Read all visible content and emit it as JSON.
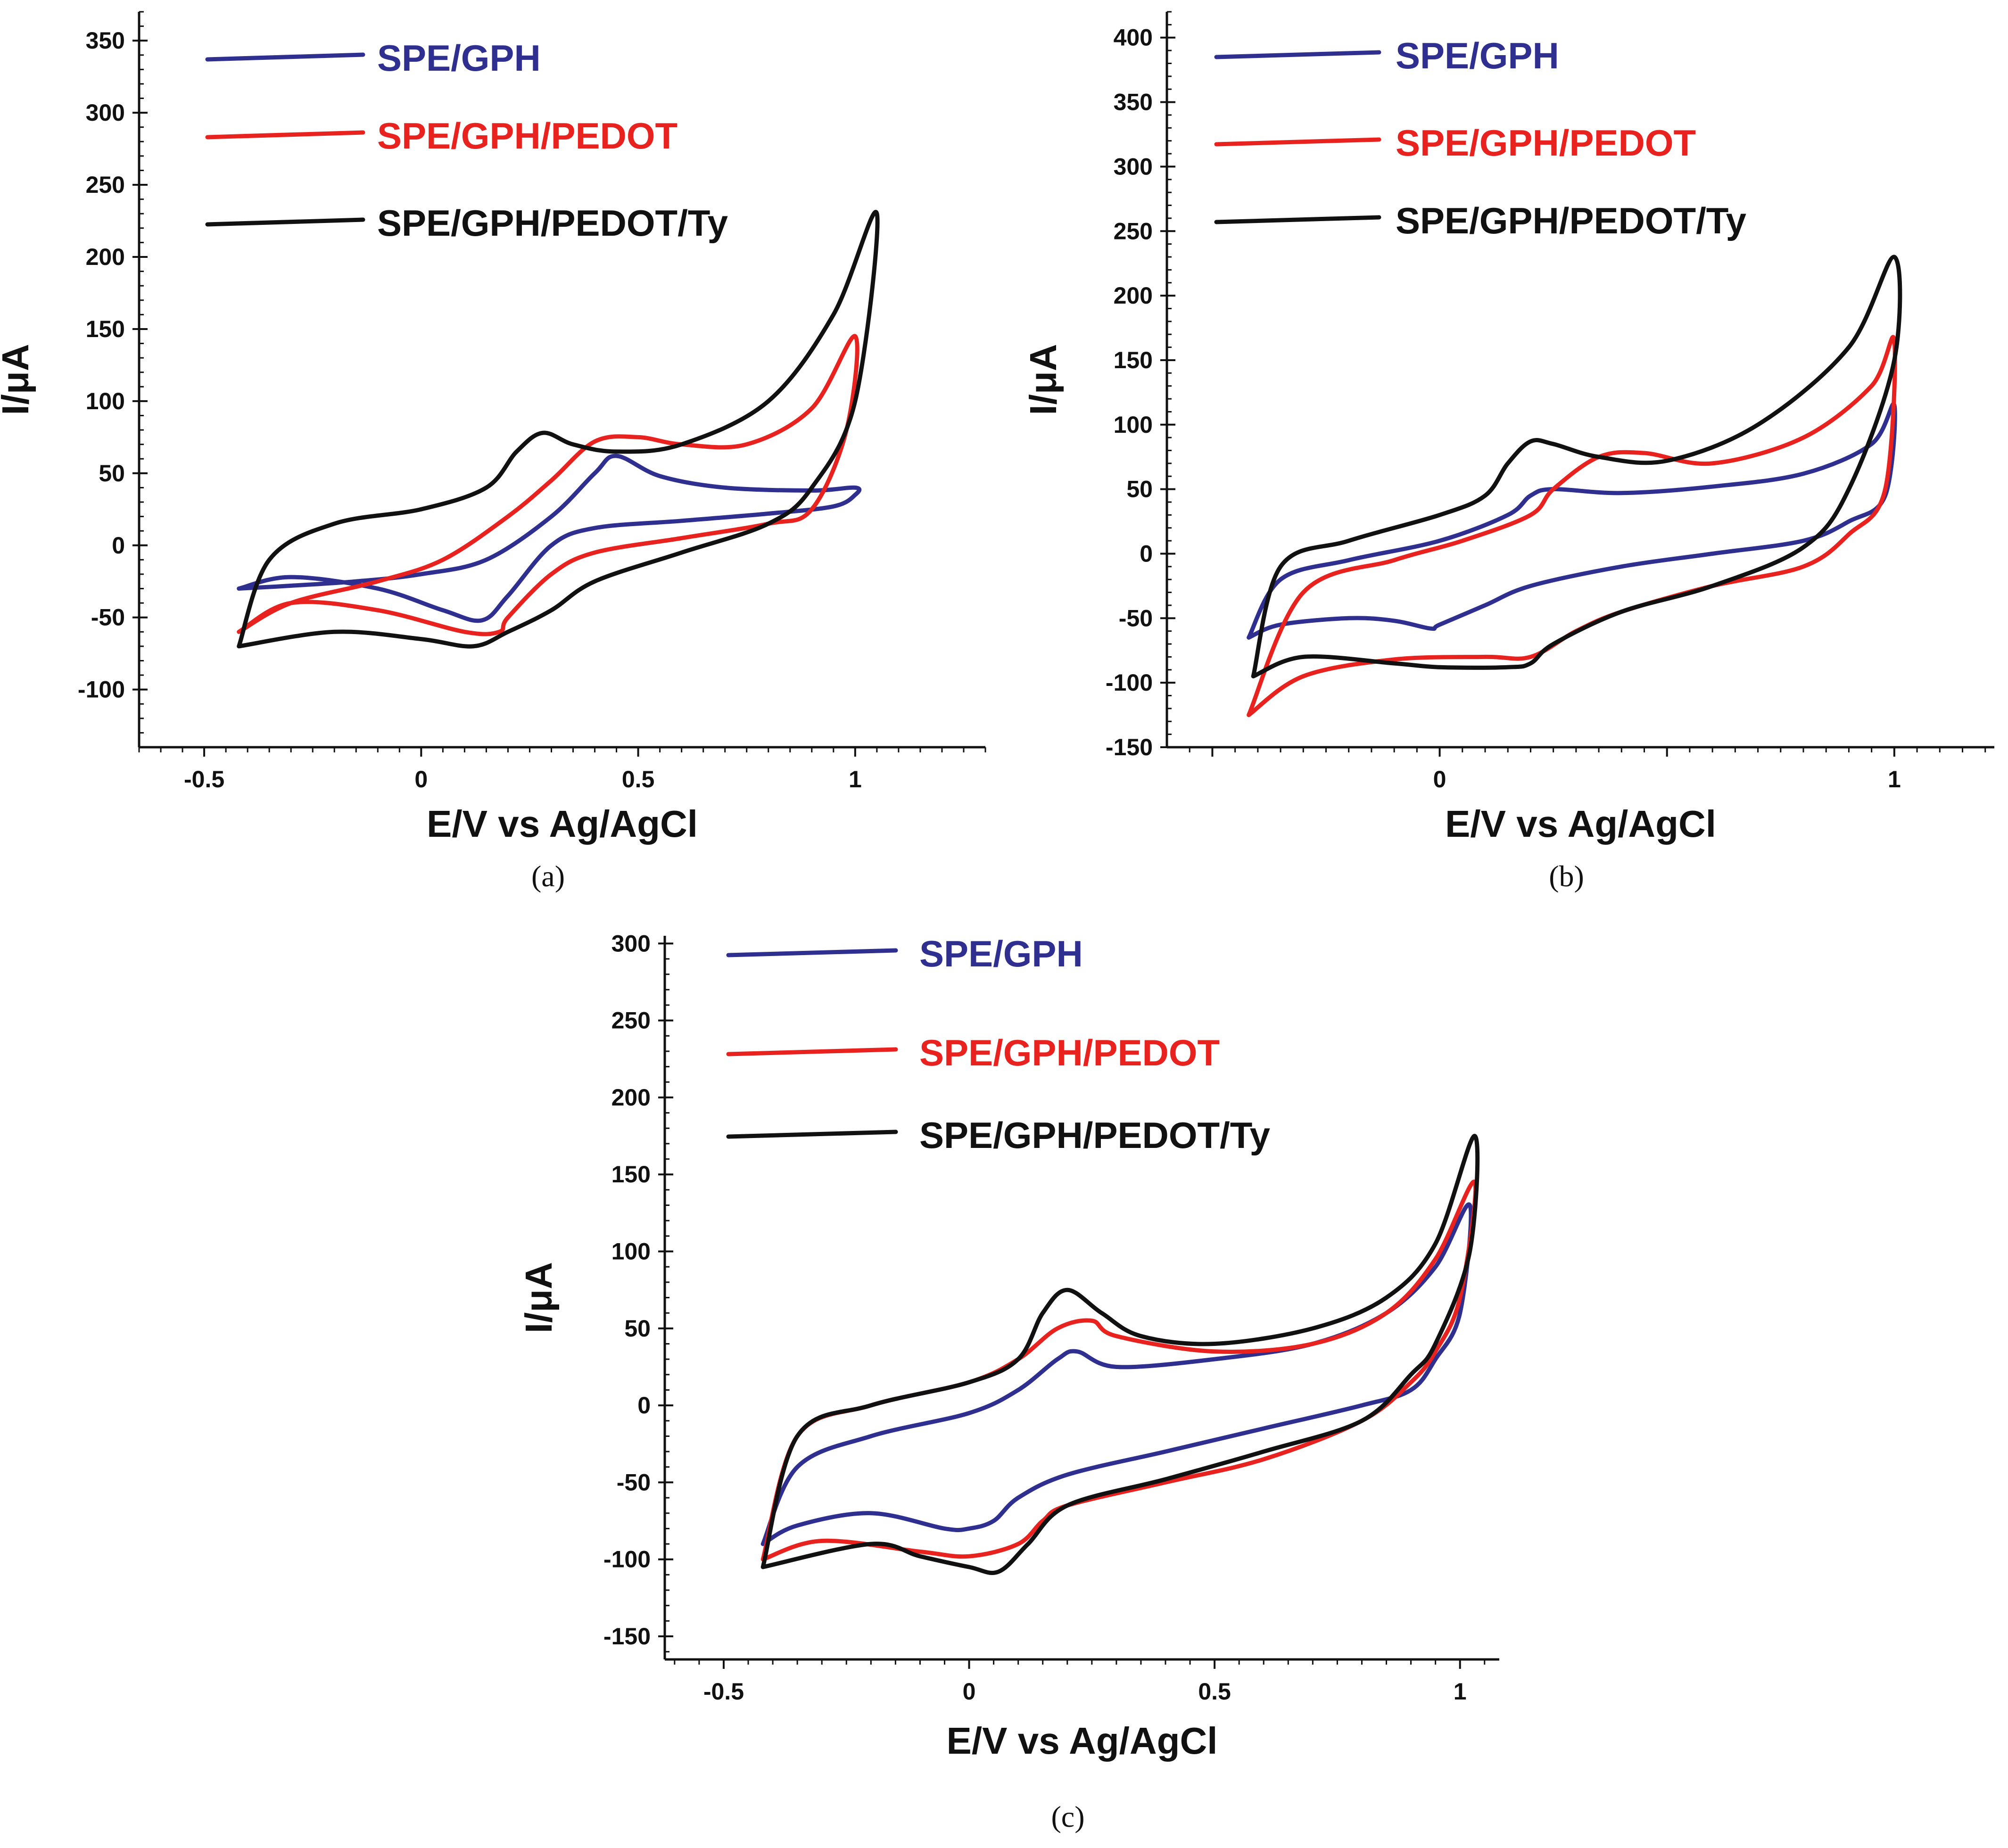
{
  "figure": {
    "panels": [
      "(a)",
      "(b)",
      "(c)"
    ]
  },
  "colors": {
    "SPE/GPH": "#2e2f8f",
    "SPE/GPH/PEDOT": "#e8231f",
    "SPE/GPH/PEDOT/Ty": "#111111",
    "axis": "#111111"
  },
  "chart_data": [
    {
      "type": "line",
      "panel_label": "(a)",
      "xlabel": "E/V vs Ag/AgCl",
      "ylabel": "I/μA",
      "xlim": [
        -0.65,
        1.3
      ],
      "ylim": [
        -140,
        370
      ],
      "xticks": [
        -0.5,
        0,
        0.5,
        1
      ],
      "xtick_labels": [
        "-0.5",
        "0",
        "0.5",
        "1"
      ],
      "yticks": [
        -100,
        -50,
        0,
        50,
        100,
        150,
        200,
        250,
        300,
        350
      ],
      "ytick_labels": [
        "-100",
        "-50",
        "0",
        "50",
        "100",
        "150",
        "200",
        "250",
        "300",
        "350"
      ],
      "legend": [
        "SPE/GPH",
        "SPE/GPH/PEDOT",
        "SPE/GPH/PEDOT/Ty"
      ],
      "legend_placement": "top-left",
      "series": [
        {
          "name": "SPE/GPH",
          "x": [
            -0.42,
            -0.3,
            -0.15,
            0.0,
            0.15,
            0.3,
            0.4,
            0.45,
            0.55,
            0.7,
            0.9,
            1.0,
            1.0,
            0.95,
            0.8,
            0.6,
            0.4,
            0.3,
            0.2,
            0.14,
            0.05,
            -0.1,
            -0.3,
            -0.42
          ],
          "y": [
            -30,
            -28,
            -25,
            -20,
            -10,
            20,
            50,
            62,
            48,
            40,
            38,
            40,
            35,
            27,
            22,
            17,
            12,
            0,
            -35,
            -52,
            -45,
            -30,
            -22,
            -30
          ]
        },
        {
          "name": "SPE/GPH/PEDOT",
          "x": [
            -0.42,
            -0.3,
            -0.1,
            0.05,
            0.2,
            0.3,
            0.4,
            0.5,
            0.6,
            0.75,
            0.9,
            1.0,
            0.98,
            0.9,
            0.8,
            0.6,
            0.4,
            0.3,
            0.2,
            0.18,
            0.1,
            -0.1,
            -0.3,
            -0.42
          ],
          "y": [
            -60,
            -40,
            -25,
            -10,
            20,
            45,
            72,
            75,
            70,
            70,
            95,
            145,
            80,
            25,
            15,
            5,
            -5,
            -20,
            -50,
            -60,
            -60,
            -45,
            -40,
            -60
          ]
        },
        {
          "name": "SPE/GPH/PEDOT/Ty",
          "x": [
            -0.42,
            -0.35,
            -0.2,
            0.0,
            0.15,
            0.22,
            0.28,
            0.35,
            0.45,
            0.6,
            0.8,
            0.95,
            1.05,
            1.0,
            0.9,
            0.8,
            0.6,
            0.4,
            0.3,
            0.2,
            0.12,
            0.0,
            -0.2,
            -0.42
          ],
          "y": [
            -70,
            -10,
            15,
            25,
            40,
            65,
            78,
            70,
            65,
            70,
            100,
            160,
            230,
            100,
            40,
            15,
            -5,
            -25,
            -45,
            -60,
            -70,
            -65,
            -60,
            -70
          ]
        }
      ]
    },
    {
      "type": "line",
      "panel_label": "(b)",
      "xlabel": "E/V vs Ag/AgCl",
      "ylabel": "I/μA",
      "xlim": [
        -0.6,
        1.22
      ],
      "ylim": [
        -150,
        420
      ],
      "xticks": [
        0,
        1
      ],
      "xtick_labels": [
        "0",
        "1"
      ],
      "yticks": [
        -150,
        -100,
        -50,
        0,
        50,
        100,
        150,
        200,
        250,
        300,
        350,
        400
      ],
      "ytick_labels": [
        "-150",
        "-100",
        "-50",
        "0",
        "50",
        "100",
        "150",
        "200",
        "250",
        "300",
        "350",
        "400"
      ],
      "legend": [
        "SPE/GPH",
        "SPE/GPH/PEDOT",
        "SPE/GPH/PEDOT/Ty"
      ],
      "legend_placement": "top-left",
      "series": [
        {
          "name": "SPE/GPH",
          "x": [
            -0.42,
            -0.35,
            -0.2,
            0.0,
            0.15,
            0.2,
            0.25,
            0.4,
            0.6,
            0.8,
            0.95,
            1.0,
            0.98,
            0.9,
            0.8,
            0.6,
            0.4,
            0.2,
            0.1,
            0.0,
            -0.02,
            -0.1,
            -0.2,
            -0.35,
            -0.42
          ],
          "y": [
            -65,
            -20,
            -5,
            10,
            30,
            45,
            50,
            47,
            52,
            62,
            85,
            115,
            45,
            25,
            10,
            0,
            -10,
            -25,
            -40,
            -55,
            -58,
            -52,
            -50,
            -55,
            -65
          ]
        },
        {
          "name": "SPE/GPH/PEDOT",
          "x": [
            -0.42,
            -0.3,
            -0.1,
            0.05,
            0.2,
            0.25,
            0.35,
            0.45,
            0.6,
            0.8,
            0.95,
            1.0,
            0.98,
            0.9,
            0.8,
            0.6,
            0.4,
            0.3,
            0.2,
            0.1,
            -0.1,
            -0.3,
            -0.42
          ],
          "y": [
            -125,
            -30,
            -5,
            10,
            30,
            50,
            75,
            78,
            70,
            90,
            130,
            165,
            50,
            15,
            -10,
            -25,
            -45,
            -60,
            -80,
            -80,
            -82,
            -95,
            -125
          ]
        },
        {
          "name": "SPE/GPH/PEDOT/Ty",
          "x": [
            -0.41,
            -0.35,
            -0.2,
            0.0,
            0.1,
            0.15,
            0.2,
            0.25,
            0.35,
            0.5,
            0.7,
            0.9,
            1.0,
            1.0,
            0.9,
            0.8,
            0.6,
            0.4,
            0.25,
            0.2,
            0.15,
            0.0,
            -0.1,
            -0.3,
            -0.41
          ],
          "y": [
            -95,
            -10,
            10,
            30,
            45,
            70,
            87,
            85,
            75,
            72,
            100,
            160,
            230,
            150,
            50,
            5,
            -25,
            -45,
            -70,
            -85,
            -88,
            -88,
            -85,
            -80,
            -95
          ]
        }
      ]
    },
    {
      "type": "line",
      "panel_label": "(c)",
      "xlabel": "E/V vs Ag/AgCl",
      "ylabel": "I/μA",
      "xlim": [
        -0.62,
        1.08
      ],
      "ylim": [
        -165,
        305
      ],
      "xticks": [
        -0.5,
        0,
        0.5,
        1
      ],
      "xtick_labels": [
        "-0.5",
        "0",
        "0.5",
        "1"
      ],
      "yticks": [
        -150,
        -100,
        -50,
        0,
        50,
        100,
        150,
        200,
        250,
        300
      ],
      "ytick_labels": [
        "-150",
        "-100",
        "-50",
        "0",
        "50",
        "100",
        "150",
        "200",
        "250",
        "300"
      ],
      "legend": [
        "SPE/GPH",
        "SPE/GPH/PEDOT",
        "SPE/GPH/PEDOT/Ty"
      ],
      "legend_placement": "top-left",
      "series": [
        {
          "name": "SPE/GPH",
          "x": [
            -0.42,
            -0.35,
            -0.2,
            0.0,
            0.1,
            0.18,
            0.22,
            0.3,
            0.5,
            0.7,
            0.85,
            0.95,
            1.02,
            1.0,
            0.95,
            0.9,
            0.8,
            0.6,
            0.4,
            0.2,
            0.1,
            0.05,
            0.0,
            -0.05,
            -0.2,
            -0.35,
            -0.42
          ],
          "y": [
            -90,
            -40,
            -20,
            -5,
            10,
            30,
            35,
            25,
            30,
            40,
            60,
            90,
            130,
            60,
            30,
            10,
            0,
            -15,
            -30,
            -45,
            -60,
            -75,
            -80,
            -80,
            -70,
            -78,
            -90
          ]
        },
        {
          "name": "SPE/GPH/PEDOT",
          "x": [
            -0.42,
            -0.35,
            -0.2,
            0.0,
            0.1,
            0.18,
            0.25,
            0.3,
            0.5,
            0.7,
            0.85,
            0.95,
            1.03,
            1.0,
            0.95,
            0.9,
            0.8,
            0.6,
            0.4,
            0.2,
            0.15,
            0.1,
            0.0,
            -0.1,
            -0.3,
            -0.42
          ],
          "y": [
            -100,
            -20,
            0,
            15,
            30,
            50,
            55,
            45,
            35,
            40,
            60,
            95,
            145,
            70,
            35,
            15,
            -10,
            -35,
            -50,
            -65,
            -75,
            -90,
            -98,
            -95,
            -88,
            -100
          ]
        },
        {
          "name": "SPE/GPH/PEDOT/Ty",
          "x": [
            -0.42,
            -0.35,
            -0.2,
            0.0,
            0.1,
            0.15,
            0.2,
            0.27,
            0.35,
            0.5,
            0.7,
            0.85,
            0.95,
            1.03,
            1.02,
            0.95,
            0.9,
            0.8,
            0.6,
            0.4,
            0.2,
            0.12,
            0.06,
            0.0,
            -0.1,
            -0.2,
            -0.42
          ],
          "y": [
            -105,
            -20,
            0,
            15,
            30,
            60,
            75,
            60,
            45,
            40,
            50,
            70,
            105,
            175,
            100,
            40,
            20,
            -10,
            -30,
            -48,
            -65,
            -90,
            -108,
            -105,
            -98,
            -90,
            -105
          ]
        }
      ]
    }
  ]
}
